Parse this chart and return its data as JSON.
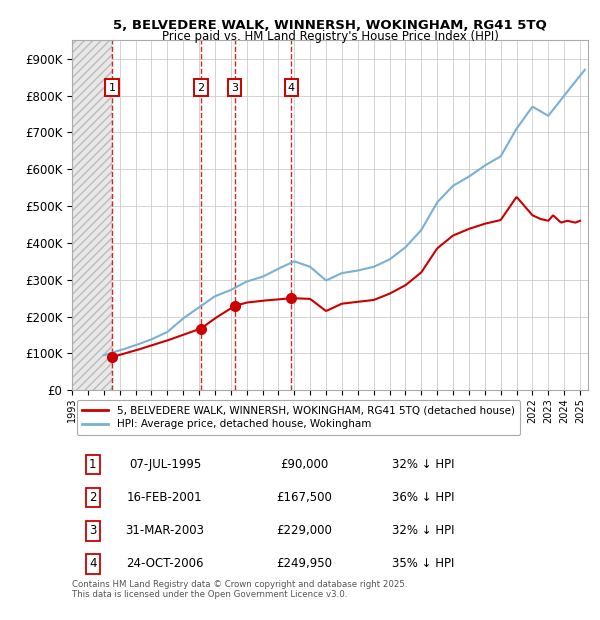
{
  "title1": "5, BELVEDERE WALK, WINNERSH, WOKINGHAM, RG41 5TQ",
  "title2": "Price paid vs. HM Land Registry's House Price Index (HPI)",
  "ylim": [
    0,
    950000
  ],
  "yticks": [
    0,
    100000,
    200000,
    300000,
    400000,
    500000,
    600000,
    700000,
    800000,
    900000
  ],
  "ytick_labels": [
    "£0",
    "£100K",
    "£200K",
    "£300K",
    "£400K",
    "£500K",
    "£600K",
    "£700K",
    "£800K",
    "£900K"
  ],
  "xlim_start": 1993.0,
  "xlim_end": 2025.5,
  "hatch_end": 1995.5,
  "transactions": [
    {
      "num": 1,
      "date": "07-JUL-1995",
      "year": 1995.52,
      "price": 90000,
      "pct": "32%"
    },
    {
      "num": 2,
      "date": "16-FEB-2001",
      "year": 2001.12,
      "price": 167500,
      "pct": "36%"
    },
    {
      "num": 3,
      "date": "31-MAR-2003",
      "year": 2003.25,
      "price": 229000,
      "pct": "32%"
    },
    {
      "num": 4,
      "date": "24-OCT-2006",
      "year": 2006.81,
      "price": 249950,
      "pct": "35%"
    }
  ],
  "legend_entry1": "5, BELVEDERE WALK, WINNERSH, WOKINGHAM, RG41 5TQ (detached house)",
  "legend_entry2": "HPI: Average price, detached house, Wokingham",
  "footnote1": "Contains HM Land Registry data © Crown copyright and database right 2025.",
  "footnote2": "This data is licensed under the Open Government Licence v3.0.",
  "red_color": "#cc0000",
  "blue_color": "#7ab0d4",
  "bg_color": "#ffffff",
  "grid_color": "#cccccc",
  "hpi_control_years": [
    1995.0,
    1996,
    1997,
    1998,
    1999,
    2000,
    2001,
    2002,
    2003,
    2004,
    2005,
    2006,
    2007,
    2008,
    2009,
    2010,
    2011,
    2012,
    2013,
    2014,
    2015,
    2016,
    2017,
    2018,
    2019,
    2020,
    2021,
    2022,
    2023,
    2024,
    2025.3
  ],
  "hpi_control_vals": [
    95000,
    108000,
    122000,
    138000,
    158000,
    195000,
    225000,
    255000,
    272000,
    295000,
    308000,
    330000,
    350000,
    335000,
    298000,
    318000,
    325000,
    335000,
    355000,
    388000,
    435000,
    510000,
    555000,
    580000,
    610000,
    635000,
    710000,
    770000,
    745000,
    800000,
    870000
  ],
  "price_control_years": [
    1995.52,
    1997,
    1999,
    2001.12,
    2002,
    2003.25,
    2004,
    2005,
    2006.81,
    2008,
    2009,
    2010,
    2011,
    2012,
    2013,
    2014,
    2015,
    2016,
    2017,
    2018,
    2019,
    2020,
    2021,
    2022,
    2022.5,
    2023,
    2023.3,
    2023.8,
    2024.2,
    2024.7,
    2025.0
  ],
  "price_control_vals": [
    90000,
    108000,
    135000,
    167500,
    195000,
    229000,
    238000,
    243000,
    249950,
    248000,
    215000,
    235000,
    240000,
    245000,
    262000,
    285000,
    320000,
    385000,
    420000,
    438000,
    452000,
    462000,
    525000,
    475000,
    465000,
    460000,
    475000,
    455000,
    460000,
    455000,
    460000
  ]
}
